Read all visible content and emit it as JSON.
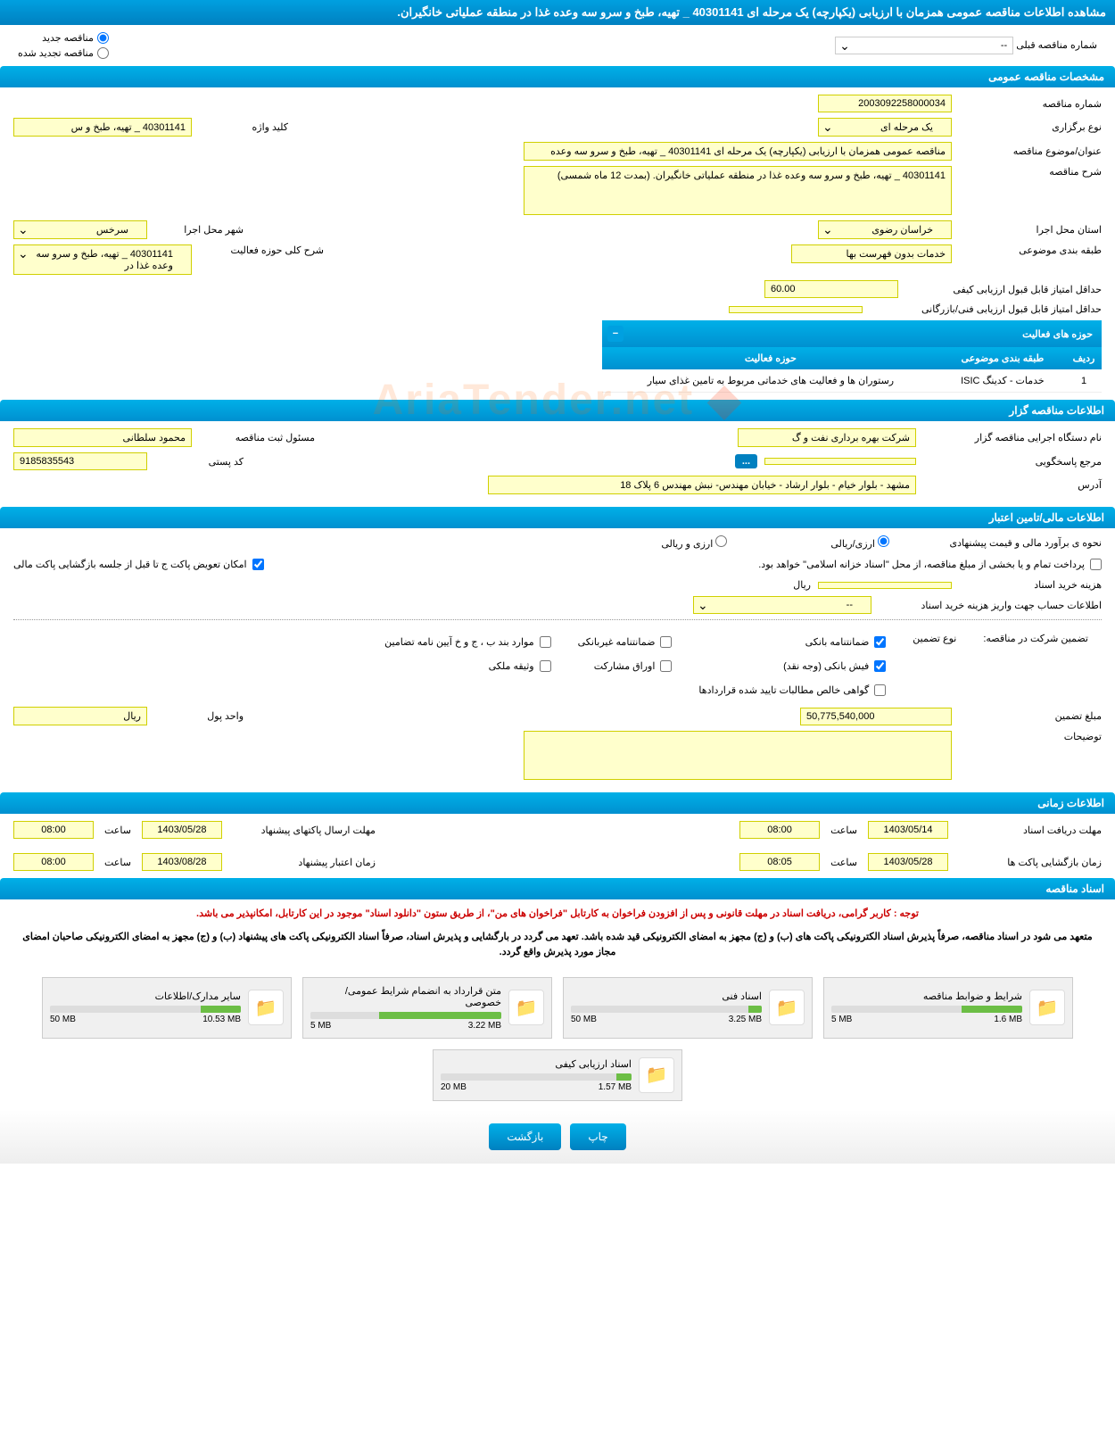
{
  "page_title": "مشاهده اطلاعات مناقصه عمومی همزمان با ارزیابی (یکپارچه) یک مرحله ای 40301141 _ تهیه، طبخ و سرو سه وعده غذا در منطقه عملیاتی خانگیران.",
  "radios": {
    "new_tender": "مناقصه جدید",
    "renewed_tender": "مناقصه تجدید شده",
    "prev_tender_label": "شماره مناقصه قبلی",
    "prev_tender_value": "--"
  },
  "sections": {
    "general": "مشخصات مناقصه عمومی",
    "organizer": "اطلاعات مناقصه گزار",
    "financial": "اطلاعات مالی/تامین اعتبار",
    "timing": "اطلاعات زمانی",
    "documents": "اسناد مناقصه"
  },
  "general": {
    "tender_number_label": "شماره مناقصه",
    "tender_number": "2003092258000034",
    "holding_type_label": "نوع برگزاری",
    "holding_type": "یک مرحله ای",
    "keyword_label": "کلید واژه",
    "keyword": "40301141 _ تهیه، طبخ و س",
    "title_label": "عنوان/موضوع مناقصه",
    "title": "مناقصه عمومی همزمان با ارزیابی (یکپارچه) یک مرحله ای 40301141 _ تهیه، طبخ و سرو سه وعده",
    "description_label": "شرح مناقصه",
    "description": "40301141 _ تهیه، طبخ و سرو سه وعده غذا در منطقه عملیاتی خانگیران. (بمدت 12 ماه شمسی)",
    "province_label": "استان محل اجرا",
    "province": "خراسان رضوی",
    "city_label": "شهر محل اجرا",
    "city": "سرخس",
    "category_label": "طبقه بندی موضوعی",
    "category": "خدمات بدون فهرست بها",
    "activity_desc_label": "شرح کلی حوزه فعالیت",
    "activity_desc": "40301141 _ تهیه، طبخ و سرو سه وعده غذا در",
    "min_quality_score_label": "حداقل امتیاز قابل قبول ارزیابی کیفی",
    "min_quality_score": "60.00",
    "min_tech_score_label": "حداقل امتیاز قابل قبول ارزیابی فنی/بازرگانی",
    "min_tech_score": ""
  },
  "activity_table": {
    "title": "حوزه های فعالیت",
    "headers": {
      "row": "ردیف",
      "category": "طبقه بندی موضوعی",
      "activity": "حوزه فعالیت"
    },
    "rows": [
      {
        "idx": "1",
        "category": "خدمات - کدینگ ISIC",
        "activity": "رستوران ها و فعالیت های خدماتی مربوط به تامین غذای سیار"
      }
    ]
  },
  "organizer": {
    "exec_org_label": "نام دستگاه اجرایی مناقصه گزار",
    "exec_org": "شرکت بهره برداری نفت و گ",
    "registrar_label": "مسئول ثبت مناقصه",
    "registrar": "محمود سلطانی",
    "response_ref_label": "مرجع پاسخگویی",
    "response_ref": "",
    "postal_code_label": "کد پستی",
    "postal_code": "9185835543",
    "address_label": "آدرس",
    "address": "مشهد - بلوار خیام - بلوار ارشاد - خیابان مهندس- نبش مهندس 6 پلاک 18"
  },
  "financial": {
    "estimate_label": "نحوه ی برآورد مالی و قیمت پیشنهادی",
    "opt_rial": "ارزی/ریالی",
    "opt_currency": "ارزی و ریالی",
    "payment_note": "پرداخت تمام و یا بخشی از مبلغ مناقصه، از محل \"اسناد خزانه اسلامی\" خواهد بود.",
    "swap_note": "امکان تعویض پاکت ج تا قبل از جلسه بازگشایی پاکت مالی",
    "doc_cost_label": "هزینه خرید اسناد",
    "doc_cost": "",
    "rial": "ریال",
    "account_info_label": "اطلاعات حساب جهت واریز هزینه خرید اسناد",
    "account_info": "--",
    "guarantee_label": "تضمین شرکت در مناقصه:",
    "guarantee_type_label": "نوع تضمین",
    "g1": "ضمانتنامه بانکی",
    "g2": "ضمانتنامه غیربانکی",
    "g3": "موارد بند ب ، ج و خ آیین نامه تضامین",
    "g4": "فیش بانکی (وجه نقد)",
    "g5": "اوراق مشارکت",
    "g6": "وثیقه ملکی",
    "g7": "گواهی خالص مطالبات تایید شده قراردادها",
    "guarantee_amount_label": "مبلغ تضمین",
    "guarantee_amount": "50,775,540,000",
    "currency_unit_label": "واحد پول",
    "currency_unit": "ریال",
    "notes_label": "توضیحات",
    "notes": ""
  },
  "timing": {
    "receive_deadline_label": "مهلت دریافت اسناد",
    "receive_deadline_date": "1403/05/14",
    "receive_deadline_time": "08:00",
    "send_deadline_label": "مهلت ارسال پاکتهای پیشنهاد",
    "send_deadline_date": "1403/05/28",
    "send_deadline_time": "08:00",
    "opening_label": "زمان بازگشایی پاکت ها",
    "opening_date": "1403/05/28",
    "opening_time": "08:05",
    "validity_label": "زمان اعتبار پیشنهاد",
    "validity_date": "1403/08/28",
    "validity_time": "08:00",
    "time_label": "ساعت"
  },
  "documents": {
    "notice1": "توجه : کاربر گرامی، دریافت اسناد در مهلت قانونی و پس از افزودن فراخوان به کارتابل \"فراخوان های من\"، از طریق ستون \"دانلود اسناد\" موجود در این کارتابل، امکانپذیر می باشد.",
    "notice2": "متعهد می شود در اسناد مناقصه، صرفاً پذیرش اسناد الکترونیکی پاکت های (ب) و (ج) مجهز به امضای الکترونیکی قید شده باشد. تعهد می گردد در بارگشایی و پذیرش اسناد، صرفاً اسناد الکترونیکی پاکت های پیشنهاد (ب) و (ج) مجهز به امضای الکترونیکی صاحبان امضای مجاز مورد پذیرش واقع گردد.",
    "files": [
      {
        "title": "شرایط و ضوابط مناقصه",
        "used": "1.6 MB",
        "total": "5 MB",
        "pct": 32
      },
      {
        "title": "اسناد فنی",
        "used": "3.25 MB",
        "total": "50 MB",
        "pct": 7
      },
      {
        "title": "متن قرارداد به انضمام شرایط عمومی/خصوصی",
        "used": "3.22 MB",
        "total": "5 MB",
        "pct": 64
      },
      {
        "title": "سایر مدارک/اطلاعات",
        "used": "10.53 MB",
        "total": "50 MB",
        "pct": 21
      },
      {
        "title": "اسناد ارزیابی کیفی",
        "used": "1.57 MB",
        "total": "20 MB",
        "pct": 8
      }
    ]
  },
  "buttons": {
    "print": "چاپ",
    "back": "بازگشت"
  },
  "watermark": "AriaTender.net"
}
